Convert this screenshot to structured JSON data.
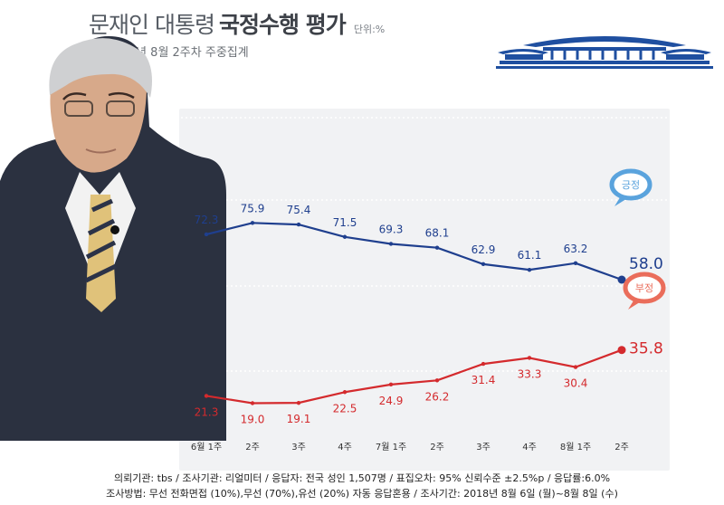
{
  "header": {
    "title_light": "문재인 대통령",
    "title_bold": "국정수행 평가",
    "unit": "단위:%",
    "subtitle": "2018년 8월 2주차 주중집계"
  },
  "footer": {
    "line1": "의뢰기관: tbs / 조사기관: 리얼미터 / 응답자: 전국 성인 1,507명 / 표집오차: 95% 신뢰수준 ±2.5%p / 응답률:6.0%",
    "line2": "조사방법: 무선 전화면접 (10%),무선 (70%),유선 (20%) 자동 응답혼용 / 조사기간: 2018년 8월 6일 (월)~8월 8일 (수)"
  },
  "colors": {
    "positive": "#1f3f8e",
    "negative": "#d42a2d",
    "positive_bubble": "#5aa3dd",
    "negative_bubble": "#ea6d5b"
  },
  "chart_data": {
    "type": "line",
    "categories": [
      "6월 1주",
      "2주",
      "3주",
      "4주",
      "7월 1주",
      "2주",
      "3주",
      "4주",
      "8월 1주",
      "2주"
    ],
    "series": [
      {
        "name": "긍정",
        "values": [
          72.3,
          75.9,
          75.4,
          71.5,
          69.3,
          68.1,
          62.9,
          61.1,
          63.2,
          58.0
        ],
        "labels": [
          "72.3",
          "75.9",
          "75.4",
          "71.5",
          "69.3",
          "68.1",
          "62.9",
          "61.1",
          "63.2",
          "58.0"
        ]
      },
      {
        "name": "부정",
        "values": [
          21.3,
          19.0,
          19.1,
          22.5,
          24.9,
          26.2,
          31.4,
          33.3,
          30.4,
          35.8
        ],
        "labels": [
          "21.3",
          "19.0",
          "19.1",
          "22.5",
          "24.9",
          "26.2",
          "31.4",
          "33.3",
          "30.4",
          "35.8"
        ]
      }
    ],
    "ylim": [
      10,
      95
    ],
    "grid": true
  }
}
